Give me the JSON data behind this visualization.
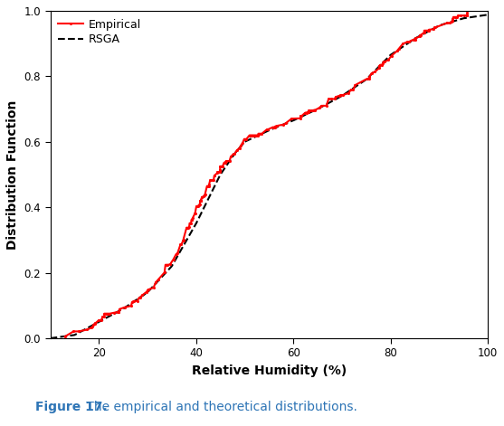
{
  "xlabel": "Relative Humidity (%)",
  "ylabel": "Distribution Function",
  "xlim": [
    10,
    100
  ],
  "ylim": [
    0.0,
    1.0
  ],
  "xticks": [
    20,
    40,
    60,
    80,
    100
  ],
  "yticks": [
    0.0,
    0.2,
    0.4,
    0.6,
    0.8,
    1.0
  ],
  "empirical_color": "#FF0000",
  "rsga_color": "#000000",
  "background_color": "#FFFFFF",
  "legend_empirical": "Empirical",
  "legend_rsga": "RSGA",
  "caption_bold": "Figure 17.",
  "caption_normal": " The empirical and theoretical distributions.",
  "empirical_marker": "o",
  "empirical_markersize": 2.2,
  "empirical_linewidth": 1.5,
  "rsga_linewidth": 1.5,
  "rsga_linestyle": "--",
  "font_size_axis_label": 10,
  "font_size_tick": 8.5,
  "font_size_legend": 9,
  "font_size_caption": 10,
  "caption_color": "#2E75B6"
}
